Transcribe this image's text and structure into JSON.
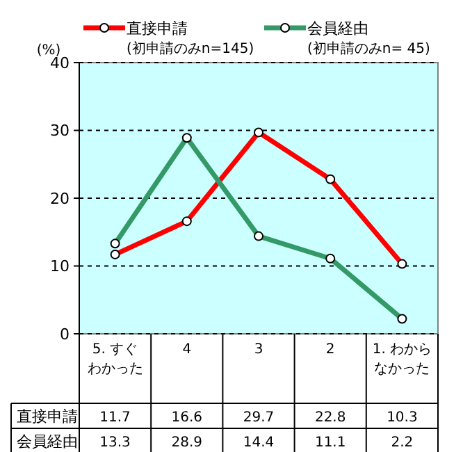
{
  "chart_data": {
    "type": "line",
    "ylabel": "(%)",
    "categories": [
      "5. すぐわかった",
      "4",
      "3",
      "2",
      "1. わからなかった"
    ],
    "series": [
      {
        "name": "直接申請",
        "color": "#ff0000",
        "values": [
          11.7,
          16.6,
          29.7,
          22.8,
          10.3
        ]
      },
      {
        "name": "会員経由",
        "color": "#339966",
        "values": [
          13.3,
          28.9,
          14.4,
          11.1,
          2.2
        ]
      }
    ],
    "annotations": [
      "(初申請のみn=145)",
      "(初申請のみn= 45)"
    ],
    "ylim": [
      0,
      40
    ],
    "yticks": [
      0,
      10,
      20,
      30,
      40
    ],
    "grid": "y",
    "legend": "top",
    "marker": "circle",
    "line_style": "solid",
    "data_labels": true
  }
}
